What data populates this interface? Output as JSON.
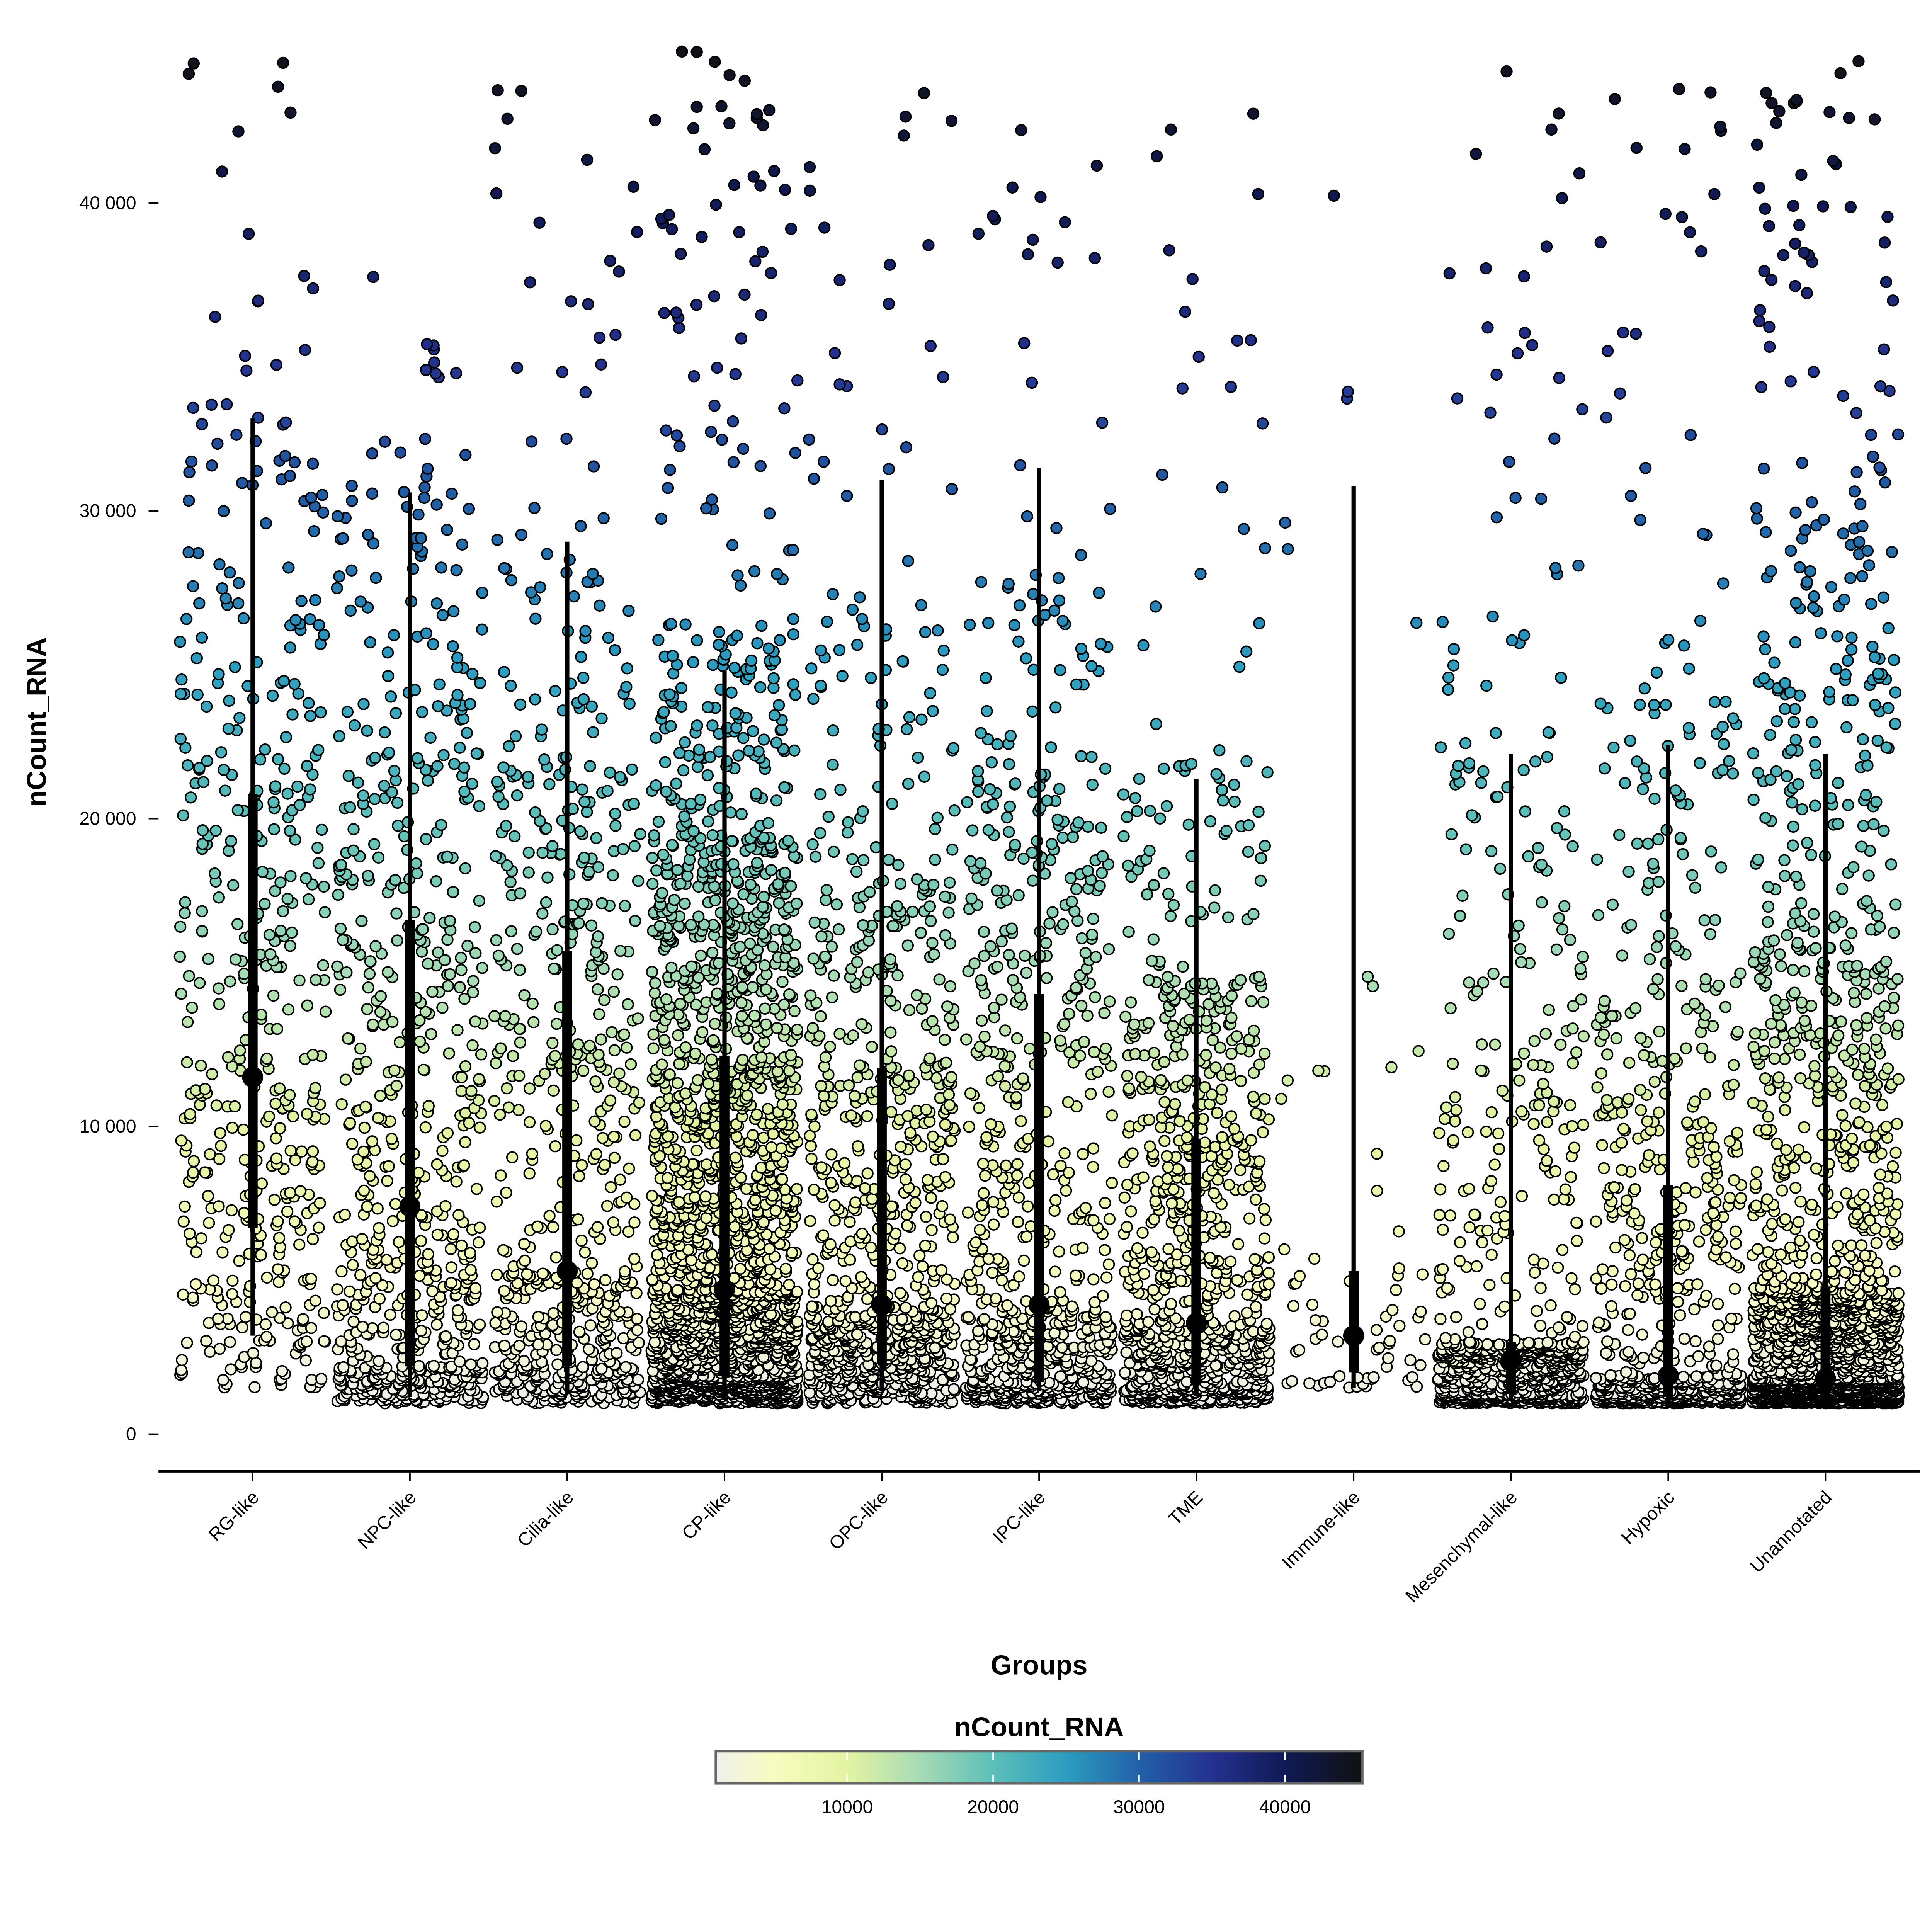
{
  "chart_data": {
    "type": "scatter",
    "subtype": "jittered strip plot with box summary",
    "title": "",
    "xlabel": "Groups",
    "ylabel": "nCount_RNA",
    "ylim": [
      -1200,
      46500
    ],
    "y_ticks": [
      0,
      10000,
      20000,
      30000,
      40000
    ],
    "y_tick_labels": [
      "0",
      "10 000",
      "20 000",
      "30 000",
      "40 000"
    ],
    "categories": [
      "RG-like",
      "NPC-like",
      "Cilia-like",
      "CP-like",
      "OPC-like",
      "IPC-like",
      "TME",
      "Immune-like",
      "Mesenchymal-like",
      "Hypoxic",
      "Unannotated"
    ],
    "quantile_levels": [
      0,
      0.25,
      0.5,
      0.75,
      0.9,
      0.97,
      1
    ],
    "groups": [
      {
        "name": "RG-like",
        "n_points": 450,
        "quantiles": [
          1500,
          6700,
          11600,
          20800,
          28000,
          33500,
          45000
        ],
        "median": 11600,
        "q1": 6700,
        "q3": 20800,
        "whisker": [
          3200,
          33000
        ]
      },
      {
        "name": "NPC-like",
        "n_points": 700,
        "quantiles": [
          1000,
          2200,
          7400,
          16700,
          24000,
          31000,
          37800
        ],
        "median": 7400,
        "q1": 2200,
        "q3": 16700,
        "whisker": [
          1200,
          30600
        ]
      },
      {
        "name": "Cilia-like",
        "n_points": 650,
        "quantiles": [
          1000,
          2200,
          5300,
          15700,
          22000,
          29000,
          44800
        ],
        "median": 5300,
        "q1": 2200,
        "q3": 15700,
        "whisker": [
          1300,
          29000
        ]
      },
      {
        "name": "CP-like",
        "n_points": 2200,
        "quantiles": [
          1000,
          1900,
          4700,
          12300,
          19500,
          26500,
          45000
        ],
        "median": 4700,
        "q1": 1900,
        "q3": 12300,
        "whisker": [
          1100,
          24800
        ]
      },
      {
        "name": "OPC-like",
        "n_points": 900,
        "quantiles": [
          1000,
          2300,
          4200,
          11900,
          19000,
          27000,
          44300
        ],
        "median": 4200,
        "q1": 2300,
        "q3": 11900,
        "whisker": [
          1400,
          31000
        ]
      },
      {
        "name": "IPC-like",
        "n_points": 800,
        "quantiles": [
          1000,
          1700,
          4200,
          14300,
          21000,
          28000,
          43200
        ],
        "median": 4200,
        "q1": 1700,
        "q3": 14300,
        "whisker": [
          1400,
          31400
        ]
      },
      {
        "name": "TME",
        "n_points": 1000,
        "quantiles": [
          1000,
          1600,
          3600,
          9600,
          15000,
          22000,
          43200
        ],
        "median": 3600,
        "q1": 1600,
        "q3": 9600,
        "whisker": [
          1300,
          21300
        ]
      },
      {
        "name": "Immune-like",
        "n_points": 70,
        "quantiles": [
          1500,
          2000,
          3200,
          5300,
          13500,
          30000,
          40300
        ],
        "median": 3200,
        "q1": 2000,
        "q3": 5300,
        "whisker": [
          1500,
          30800
        ]
      },
      {
        "name": "Mesenchymal-like",
        "n_points": 900,
        "quantiles": [
          1000,
          1300,
          2400,
          3000,
          13000,
          26000,
          44300
        ],
        "median": 2400,
        "q1": 1300,
        "q3": 3000,
        "whisker": [
          1100,
          22100
        ]
      },
      {
        "name": "Hypoxic",
        "n_points": 800,
        "quantiles": [
          1000,
          1200,
          1900,
          8100,
          15000,
          24000,
          44700
        ],
        "median": 1900,
        "q1": 1200,
        "q3": 8100,
        "whisker": [
          1000,
          22400
        ]
      },
      {
        "name": "Unannotated",
        "n_points": 2500,
        "quantiles": [
          1000,
          1300,
          1800,
          4800,
          16000,
          30000,
          44700
        ],
        "median": 1800,
        "q1": 1300,
        "q3": 4800,
        "whisker": [
          1100,
          22100
        ]
      }
    ],
    "legend": {
      "title": "nCount_RNA",
      "placement": "bottom",
      "range": [
        1000,
        45300
      ],
      "ticks": [
        10000,
        20000,
        30000,
        40000
      ],
      "tick_labels": [
        "10000",
        "20000",
        "30000",
        "40000"
      ],
      "color_stops": [
        {
          "value": 1000,
          "color": "#f0f0ec"
        },
        {
          "value": 5000,
          "color": "#f7fcc0"
        },
        {
          "value": 10000,
          "color": "#e3f4a2"
        },
        {
          "value": 15000,
          "color": "#a6dbb5"
        },
        {
          "value": 20000,
          "color": "#5dbfb9"
        },
        {
          "value": 25000,
          "color": "#2c9dc0"
        },
        {
          "value": 30000,
          "color": "#2261a8"
        },
        {
          "value": 35000,
          "color": "#24318f"
        },
        {
          "value": 40000,
          "color": "#101a55"
        },
        {
          "value": 45300,
          "color": "#111111"
        }
      ]
    }
  }
}
